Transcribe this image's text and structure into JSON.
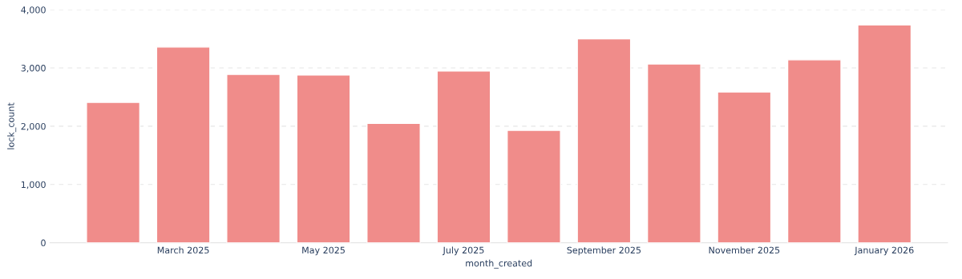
{
  "chart_data": {
    "type": "bar",
    "xlabel": "month_created",
    "ylabel": "lock_count",
    "categories": [
      null,
      "March 2025",
      null,
      "May 2025",
      null,
      "July 2025",
      null,
      "September 2025",
      null,
      "November 2025",
      null,
      "January 2026"
    ],
    "values": [
      2410,
      3360,
      2890,
      2880,
      2050,
      2950,
      1930,
      3500,
      3070,
      2590,
      3140,
      3740
    ],
    "color": "#f08c8a",
    "ylim": [
      0,
      4000
    ],
    "yticks": [
      {
        "value": 0,
        "label": "0"
      },
      {
        "value": 1000,
        "label": "1,000"
      },
      {
        "value": 2000,
        "label": "2,000"
      },
      {
        "value": 3000,
        "label": "3,000"
      },
      {
        "value": 4000,
        "label": "4,000"
      }
    ],
    "grid": "y"
  }
}
